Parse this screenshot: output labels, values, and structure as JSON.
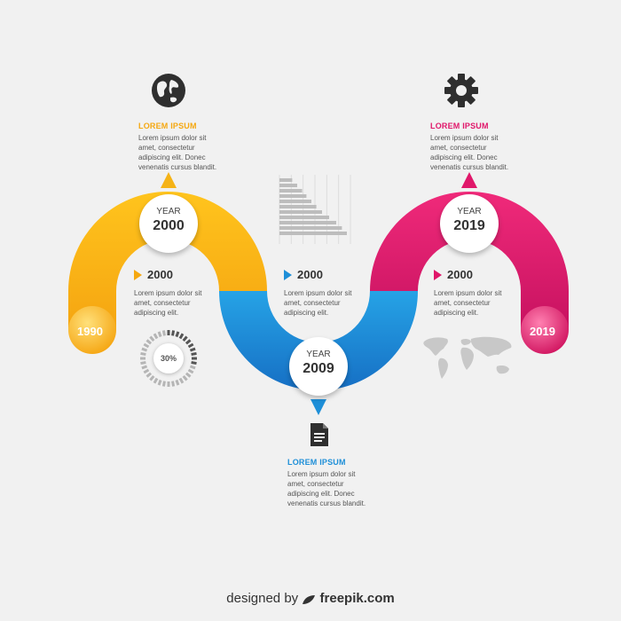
{
  "colors": {
    "yellow": "#fbb017",
    "blue": "#1e8fd8",
    "magenta": "#e0176a",
    "gray_icon": "#333333"
  },
  "top_left": {
    "heading": "LOREM IPSUM",
    "body": "Lorem ipsum dolor sit\namet, consectetur\nadipiscing elit. Donec\nvenenatis cursus blandit.",
    "icon": "globe-icon"
  },
  "top_right": {
    "heading": "LOREM IPSUM",
    "body": "Lorem ipsum dolor sit\namet, consectetur\nadipiscing elit. Donec\nvenenatis cursus blandit.",
    "icon": "gear-icon"
  },
  "bottom_center": {
    "heading": "LOREM IPSUM",
    "body": "Lorem ipsum dolor sit\namet, consectetur\nadipiscing elit. Donec\nvenenatis cursus blandit.",
    "icon": "document-icon"
  },
  "milestones": [
    {
      "label": "YEAR",
      "year": "2000"
    },
    {
      "label": "YEAR",
      "year": "2009"
    },
    {
      "label": "YEAR",
      "year": "2019"
    }
  ],
  "ends": {
    "start": "1990",
    "end": "2019"
  },
  "sub_items": [
    {
      "year": "2000",
      "body": "Lorem ipsum dolor sit\namet, consectetur\nadipiscing elit."
    },
    {
      "year": "2000",
      "body": "Lorem ipsum dolor sit\namet, consectetur\nadipiscing elit."
    },
    {
      "year": "2000",
      "body": "Lorem ipsum dolor sit\namet, consectetur\nadipiscing elit."
    }
  ],
  "gauge": {
    "value_label": "30%",
    "fraction": 0.3
  },
  "bar_widget": {
    "values": [
      0.18,
      0.25,
      0.32,
      0.38,
      0.45,
      0.52,
      0.6,
      0.7,
      0.8,
      0.88,
      0.95
    ]
  },
  "footer": {
    "prefix": "designed by",
    "brand": "freepik.com"
  }
}
